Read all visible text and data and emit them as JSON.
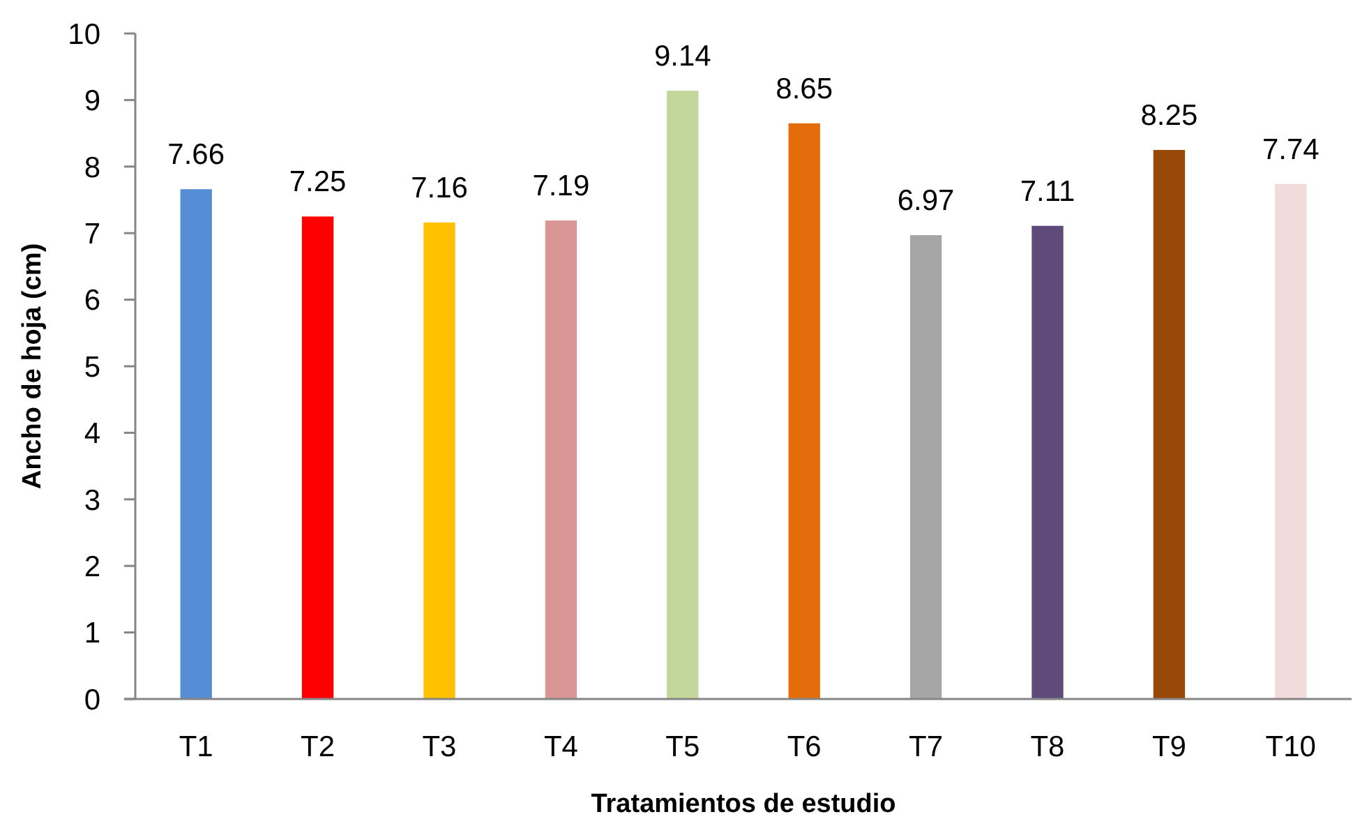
{
  "chart_data": {
    "type": "bar",
    "xlabel": "Tratamientos de estudio",
    "ylabel": "Ancho de hoja (cm)",
    "categories": [
      "T1",
      "T2",
      "T3",
      "T4",
      "T5",
      "T6",
      "T7",
      "T8",
      "T9",
      "T10"
    ],
    "values": [
      7.66,
      7.25,
      7.16,
      7.19,
      9.14,
      8.65,
      6.97,
      7.11,
      8.25,
      7.74
    ],
    "colors": [
      "#558ed5",
      "#ff0000",
      "#ffc000",
      "#d99694",
      "#c3d69b",
      "#e46c0a",
      "#a6a6a6",
      "#604a7b",
      "#984807",
      "#f2dcdb"
    ],
    "ylim": [
      0,
      10
    ],
    "yticks": [
      0,
      1,
      2,
      3,
      4,
      5,
      6,
      7,
      8,
      9,
      10
    ],
    "data_labels": true
  }
}
